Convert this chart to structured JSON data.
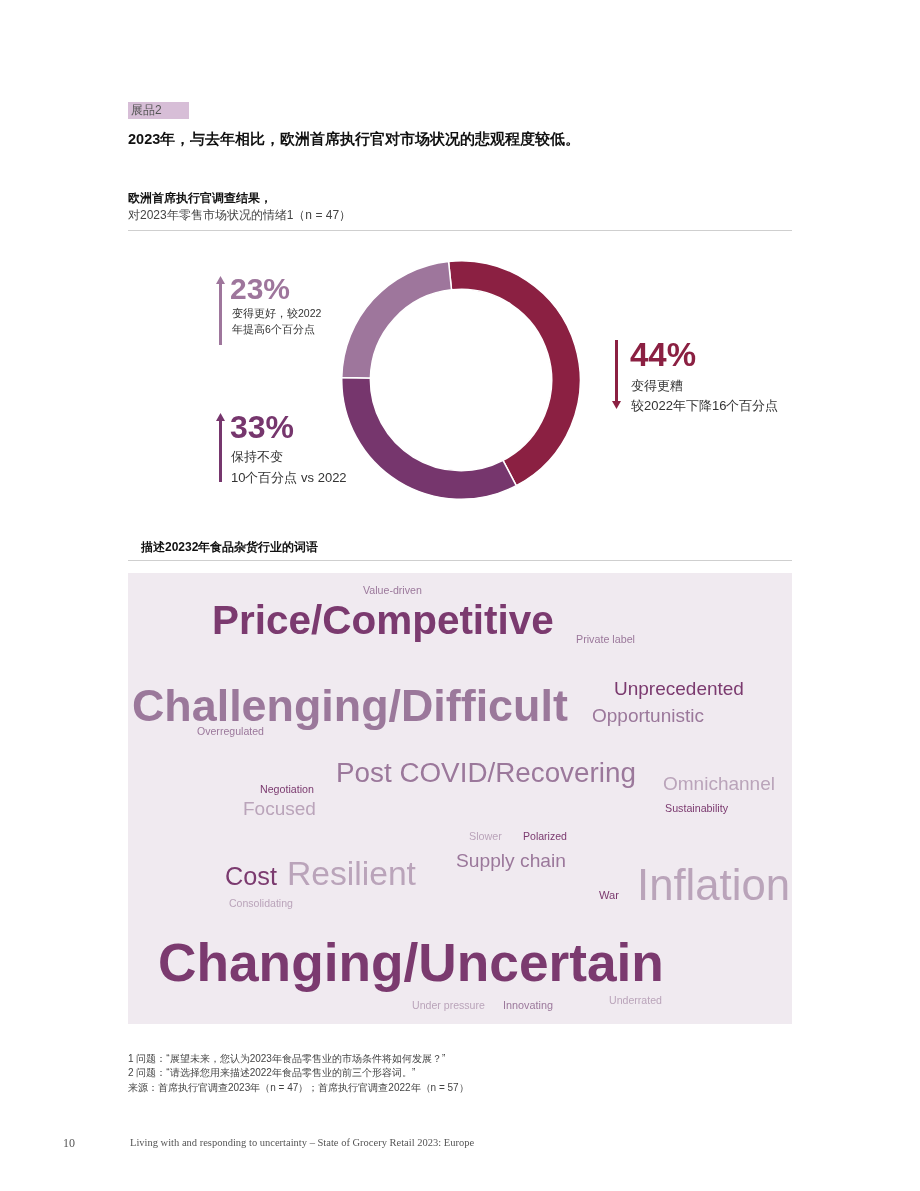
{
  "chart_data": [
    {
      "type": "donut",
      "title": "欧洲首席执行官调查结果，",
      "subtitle": "对2023年零售市场状况的情绪1（n = 47）",
      "categories": [
        "变得更糟较2022年下降16个百分点",
        "保持不变10个百分点 vs 2022",
        "变得更好，较2022年提高6个百分点"
      ],
      "values": [
        44,
        33,
        23
      ],
      "colors": [
        "#8b2042",
        "#76366d",
        "#9e769c"
      ],
      "value_labels": [
        "44%",
        "33%",
        "23%"
      ],
      "annotations": [
        "展品2",
        "2023年，与去年相比，欧洲首席执行官对市场状况的悲观程度较低。"
      ]
    },
    {
      "type": "other",
      "title": "描述20232年食品杂货行业的词语",
      "annotations": [
        "Value-driven",
        "Price/Competitive",
        "Private label",
        "Unprecedented",
        "Challenging/Difficult",
        "Opportunistic",
        "Overregulated",
        "Post COVID/Recovering",
        "Omnichannel",
        "Negotiation",
        "Focused",
        "Sustainability",
        "Slower",
        "Polarized",
        "Supply chain",
        "Cost",
        "Resilient",
        "War",
        "Inflation",
        "Consolidating",
        "Changing/Uncertain",
        "Underrated",
        "Under pressure",
        "Innovating",
        "1 问题：“展望未来，您认为2023年食品零售业的市场条件将如何发展？”",
        "2 问题：“请选择您用来描述2022年食品零售业的前三个形容词。”",
        "来源：首席执行官调查2023年（n = 47）；首席执行官调查2022年（n = 57）",
        "10",
        "Living with and responding to uncertainty – State of Grocery Retail 2023: Europe"
      ]
    }
  ]
}
